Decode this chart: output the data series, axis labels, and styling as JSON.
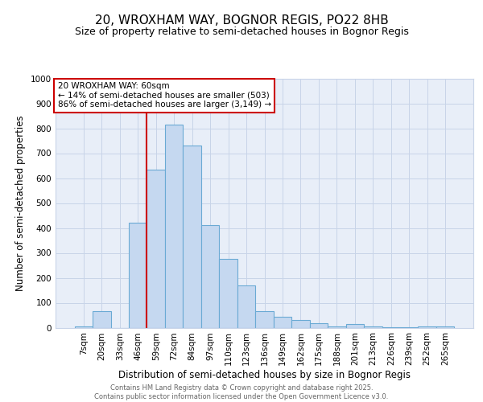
{
  "title": "20, WROXHAM WAY, BOGNOR REGIS, PO22 8HB",
  "subtitle": "Size of property relative to semi-detached houses in Bognor Regis",
  "xlabel": "Distribution of semi-detached houses by size in Bognor Regis",
  "ylabel": "Number of semi-detached properties",
  "categories": [
    "7sqm",
    "20sqm",
    "33sqm",
    "46sqm",
    "59sqm",
    "72sqm",
    "84sqm",
    "97sqm",
    "110sqm",
    "123sqm",
    "136sqm",
    "149sqm",
    "162sqm",
    "175sqm",
    "188sqm",
    "201sqm",
    "213sqm",
    "226sqm",
    "239sqm",
    "252sqm",
    "265sqm"
  ],
  "values": [
    5,
    65,
    0,
    420,
    635,
    815,
    730,
    410,
    275,
    170,
    65,
    42,
    30,
    18,
    5,
    15,
    5,
    2,
    2,
    5,
    5
  ],
  "bar_color": "#c5d8f0",
  "bar_edge_color": "#6aaad4",
  "grid_color": "#c8d4e8",
  "bg_color": "#e8eef8",
  "annotation_text": "20 WROXHAM WAY: 60sqm\n← 14% of semi-detached houses are smaller (503)\n86% of semi-detached houses are larger (3,149) →",
  "annotation_box_color": "#ffffff",
  "annotation_box_edge": "#cc0000",
  "vline_color": "#cc0000",
  "vline_index": 4,
  "ylim": [
    0,
    1000
  ],
  "yticks": [
    0,
    100,
    200,
    300,
    400,
    500,
    600,
    700,
    800,
    900,
    1000
  ],
  "footnote": "Contains HM Land Registry data © Crown copyright and database right 2025.\nContains public sector information licensed under the Open Government Licence v3.0.",
  "title_fontsize": 11,
  "subtitle_fontsize": 9,
  "tick_fontsize": 7.5,
  "label_fontsize": 8.5,
  "annot_fontsize": 7.5
}
